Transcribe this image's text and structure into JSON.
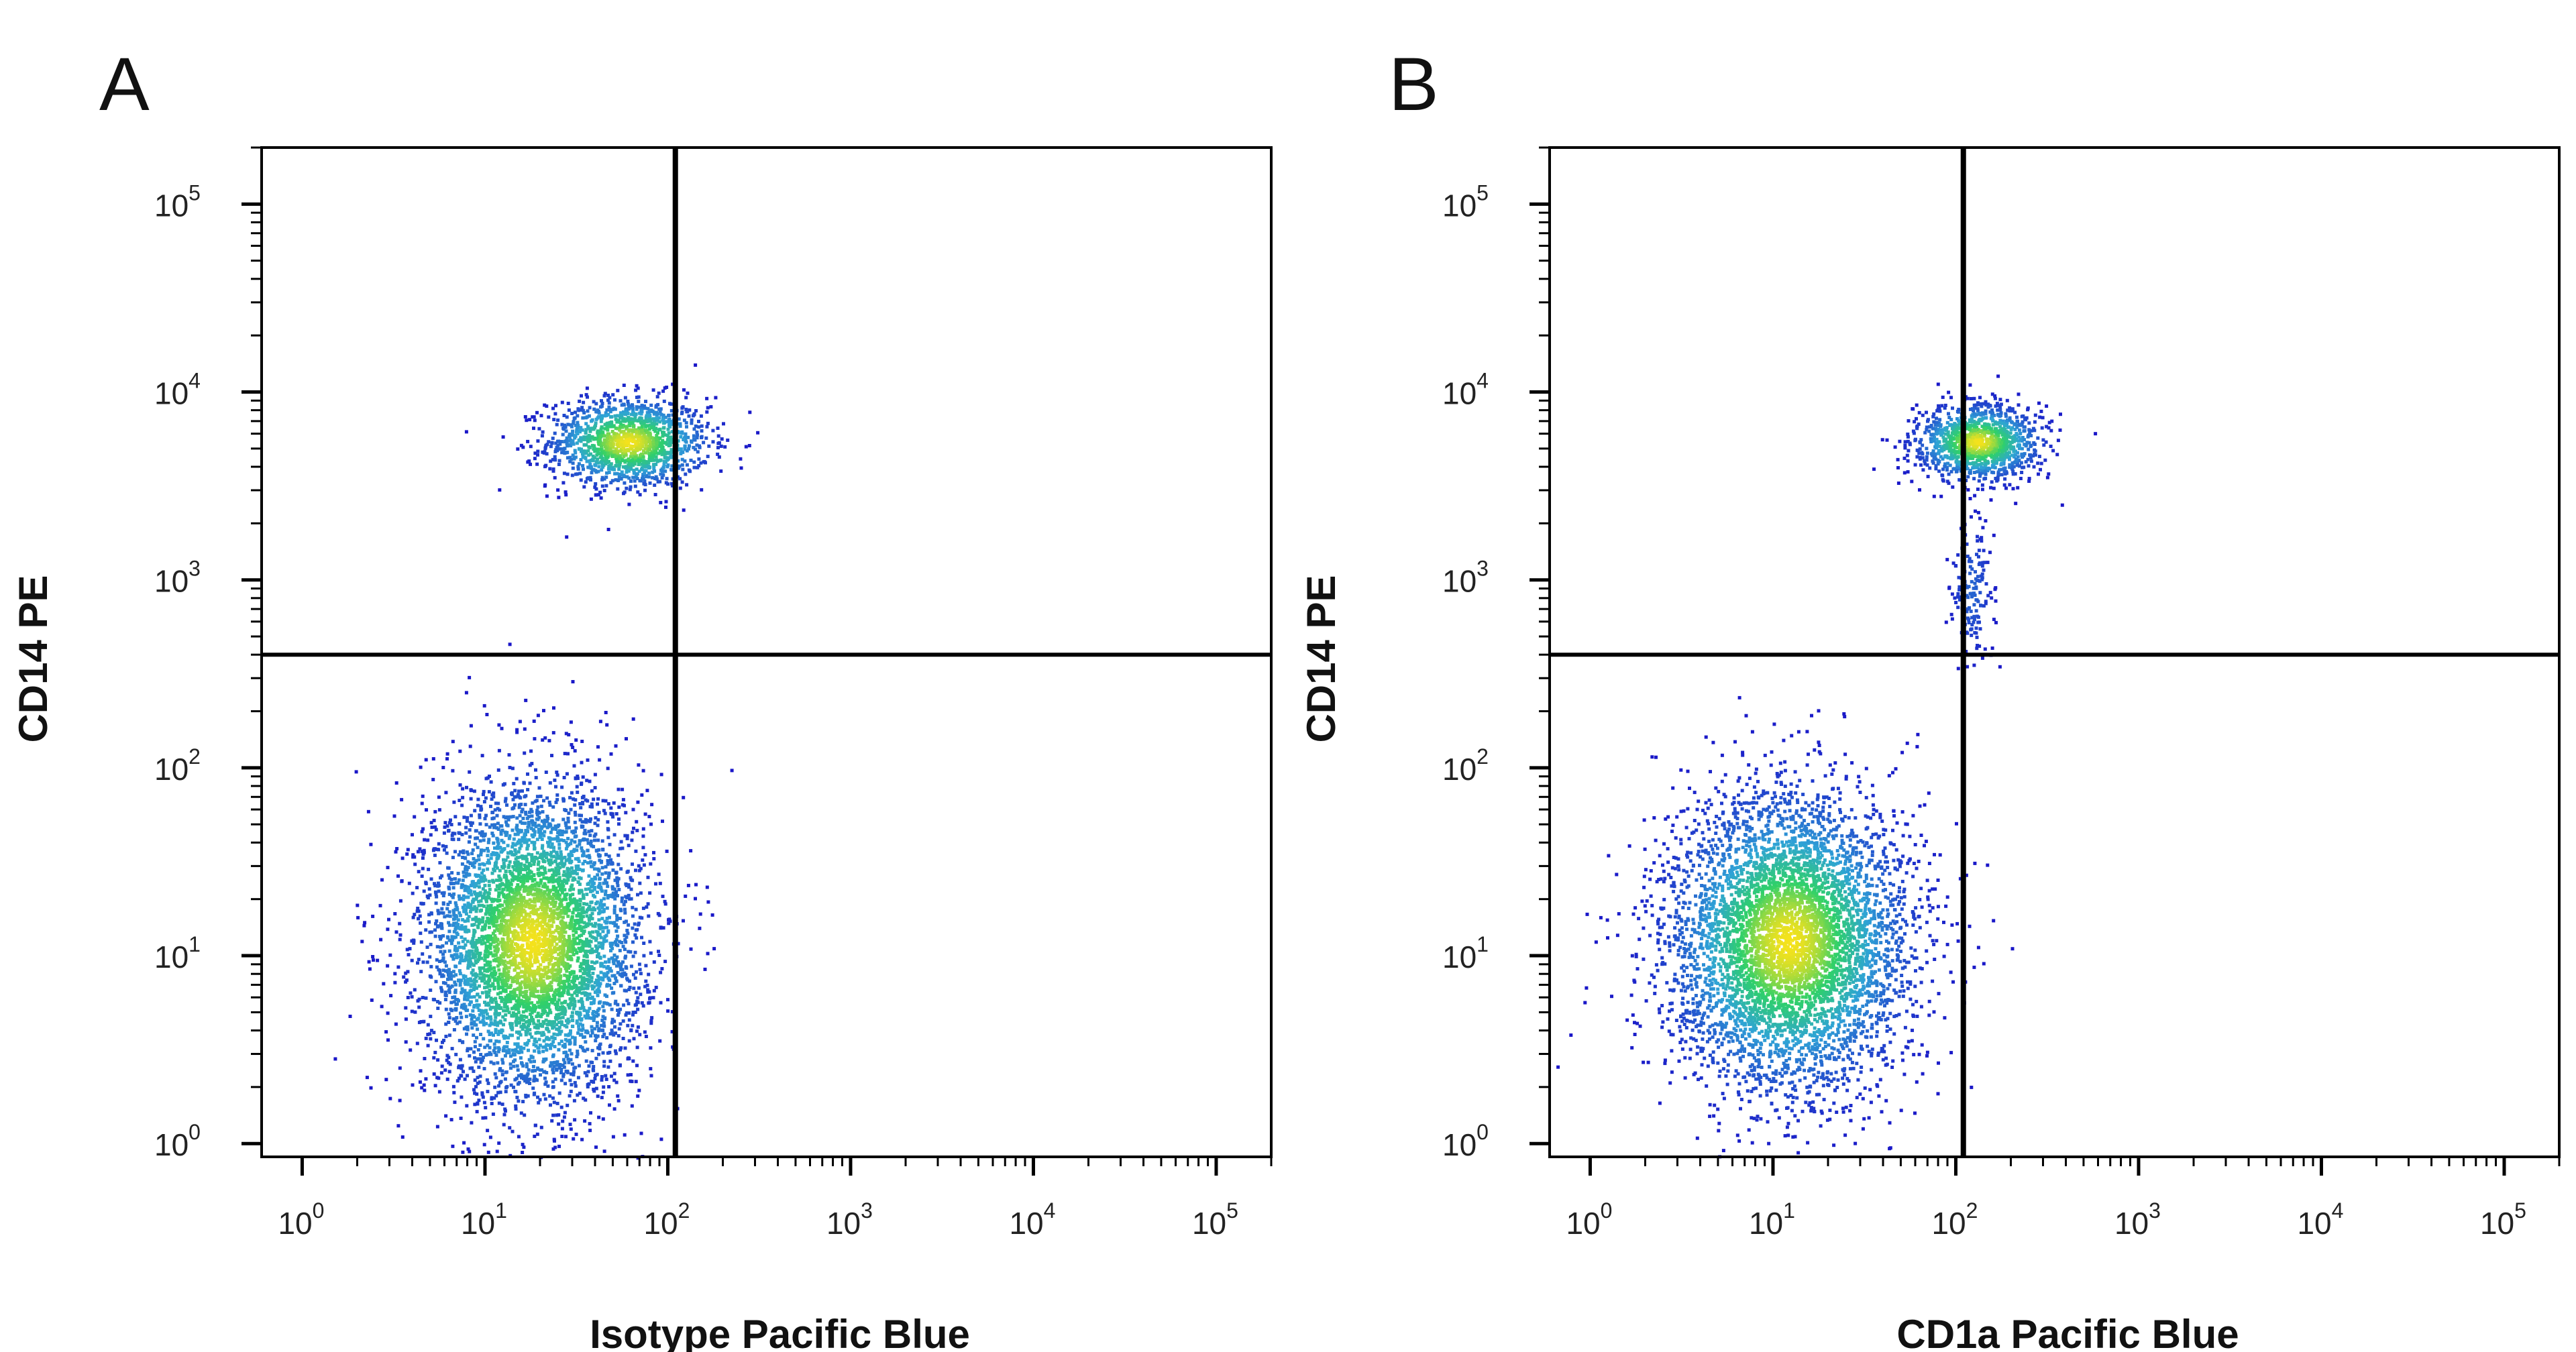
{
  "chart_data": [
    {
      "type": "scatter",
      "panel_label": "A",
      "xlabel": "Isotype Pacific Blue",
      "ylabel": "CD14 PE",
      "x_scale": "log",
      "y_scale": "log",
      "xlim": [
        0.6,
        200000
      ],
      "ylim": [
        0.85,
        200000
      ],
      "x_ticks": [
        {
          "base": "10",
          "exp": "0"
        },
        {
          "base": "10",
          "exp": "1"
        },
        {
          "base": "10",
          "exp": "2"
        },
        {
          "base": "10",
          "exp": "3"
        },
        {
          "base": "10",
          "exp": "4"
        },
        {
          "base": "10",
          "exp": "5"
        }
      ],
      "y_ticks": [
        {
          "base": "10",
          "exp": "0"
        },
        {
          "base": "10",
          "exp": "1"
        },
        {
          "base": "10",
          "exp": "2"
        },
        {
          "base": "10",
          "exp": "3"
        },
        {
          "base": "10",
          "exp": "4"
        },
        {
          "base": "10",
          "exp": "5"
        }
      ],
      "quadrant_gates": {
        "x": 110,
        "y": 400
      },
      "populations": [
        {
          "x_center": 60,
          "y_center": 5500,
          "x_spread": 0.22,
          "y_spread": 0.12,
          "count": 1400,
          "density": "high"
        },
        {
          "x_center": 18,
          "y_center": 12,
          "x_spread": 0.3,
          "y_spread": 0.42,
          "count": 5200,
          "density": "high"
        }
      ],
      "grid": false,
      "legend": "none"
    },
    {
      "type": "scatter",
      "panel_label": "B",
      "xlabel": "CD1a Pacific Blue",
      "ylabel": "CD14 PE",
      "x_scale": "log",
      "y_scale": "log",
      "xlim": [
        0.6,
        200000
      ],
      "ylim": [
        0.85,
        200000
      ],
      "x_ticks": [
        {
          "base": "10",
          "exp": "0"
        },
        {
          "base": "10",
          "exp": "1"
        },
        {
          "base": "10",
          "exp": "2"
        },
        {
          "base": "10",
          "exp": "3"
        },
        {
          "base": "10",
          "exp": "4"
        },
        {
          "base": "10",
          "exp": "5"
        }
      ],
      "y_ticks": [
        {
          "base": "10",
          "exp": "0"
        },
        {
          "base": "10",
          "exp": "1"
        },
        {
          "base": "10",
          "exp": "2"
        },
        {
          "base": "10",
          "exp": "3"
        },
        {
          "base": "10",
          "exp": "4"
        },
        {
          "base": "10",
          "exp": "5"
        }
      ],
      "quadrant_gates": {
        "x": 110,
        "y": 400
      },
      "populations": [
        {
          "x_center": 130,
          "y_center": 5500,
          "x_spread": 0.17,
          "y_spread": 0.1,
          "count": 1200,
          "density": "high"
        },
        {
          "x_center": 12,
          "y_center": 12,
          "x_spread": 0.33,
          "y_spread": 0.4,
          "count": 5200,
          "density": "high"
        },
        {
          "x_center": 120,
          "y_center": 900,
          "x_spread": 0.06,
          "y_spread": 0.2,
          "count": 160,
          "density": "low"
        }
      ],
      "grid": false,
      "legend": "none"
    }
  ],
  "colors": {
    "density_low": "#1a16c8",
    "density_mid": "#2fa3d6",
    "density_high": "#2fd06a",
    "density_peak": "#f5e21c",
    "axis": "#000000",
    "background": "#ffffff"
  }
}
